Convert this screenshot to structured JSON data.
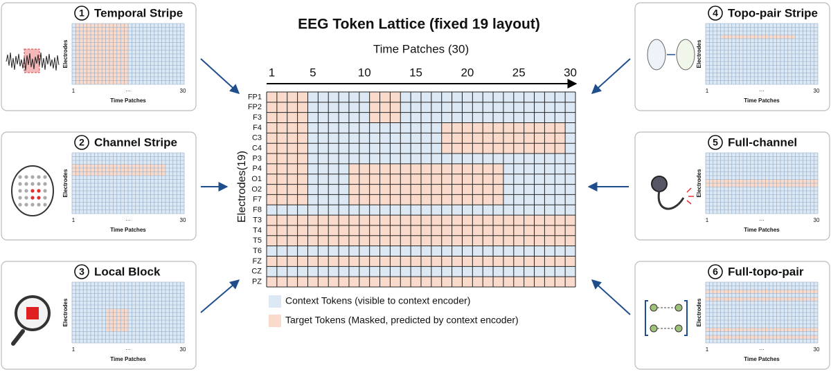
{
  "title": "EEG Token Lattice (fixed 19 layout)",
  "x_axis_label": "Time Patches (30)",
  "x_ticks": [
    1,
    5,
    10,
    15,
    20,
    25,
    30
  ],
  "y_axis_label": "Electrodes(19)",
  "electrodes": [
    "FP1",
    "FP2",
    "F3",
    "F4",
    "C3",
    "C4",
    "P3",
    "P4",
    "O1",
    "O2",
    "F7",
    "F8",
    "T3",
    "T4",
    "T5",
    "T6",
    "FZ",
    "CZ",
    "PZ"
  ],
  "masked_spans": [
    [
      [
        1,
        4
      ],
      [
        11,
        13
      ]
    ],
    [
      [
        1,
        4
      ],
      [
        11,
        13
      ]
    ],
    [
      [
        1,
        4
      ],
      [
        11,
        13
      ]
    ],
    [
      [
        1,
        4
      ],
      [
        18,
        29
      ]
    ],
    [
      [
        1,
        4
      ],
      [
        18,
        29
      ]
    ],
    [
      [
        1,
        4
      ],
      [
        18,
        29
      ]
    ],
    [
      [
        1,
        4
      ]
    ],
    [
      [
        1,
        4
      ],
      [
        9,
        23
      ]
    ],
    [
      [
        1,
        4
      ],
      [
        9,
        23
      ]
    ],
    [
      [
        1,
        4
      ],
      [
        9,
        23
      ]
    ],
    [
      [
        1,
        4
      ],
      [
        9,
        23
      ]
    ],
    [],
    [
      [
        1,
        30
      ]
    ],
    [
      [
        1,
        30
      ]
    ],
    [
      [
        1,
        30
      ]
    ],
    [],
    [
      [
        1,
        30
      ]
    ],
    [],
    [
      [
        1,
        30
      ]
    ]
  ],
  "legend": [
    "Context Tokens (visible to context encoder)",
    "Target Tokens (Masked, predicted by context encoder)"
  ],
  "panels": [
    {
      "number": "1",
      "title": "Temporal Stripe",
      "y_label": "Electrodes",
      "x_label": "Time Patches",
      "x_start": "1",
      "x_mid": "…",
      "x_end": "30"
    },
    {
      "number": "2",
      "title": "Channel Stripe",
      "y_label": "Electrodes",
      "x_label": "Time Patches",
      "x_start": "1",
      "x_mid": "…",
      "x_end": "30"
    },
    {
      "number": "3",
      "title": "Local Block",
      "y_label": "Electrodes",
      "x_label": "Time Patches",
      "x_start": "1",
      "x_mid": "…",
      "x_end": "30"
    },
    {
      "number": "4",
      "title": "Topo-pair Stripe",
      "y_label": "Electrodes",
      "x_label": "Time Patches",
      "x_start": "1",
      "x_mid": "…",
      "x_end": "30"
    },
    {
      "number": "5",
      "title": "Full-channel",
      "y_label": "Electrodes",
      "x_label": "Time Patches",
      "x_start": "1",
      "x_mid": "…",
      "x_end": "30"
    },
    {
      "number": "6",
      "title": "Full-topo-pair",
      "y_label": "Electrodes",
      "x_label": "Time Patches",
      "x_start": "1",
      "x_mid": "…",
      "x_end": "30"
    }
  ]
}
